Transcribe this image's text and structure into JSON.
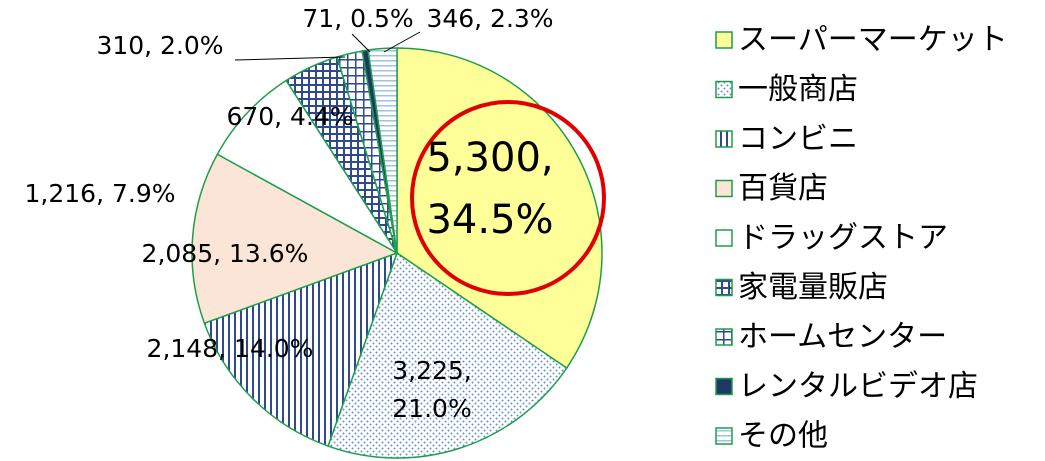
{
  "chart_data": {
    "type": "pie",
    "categories": [
      "スーパーマーケット",
      "一般商店",
      "コンビニ",
      "百貨店",
      "ドラッグストア",
      "家電量販店",
      "ホームセンター",
      "レンタルビデオ店",
      "その他"
    ],
    "values": [
      5300,
      3225,
      2148,
      2085,
      1216,
      670,
      310,
      71,
      346
    ],
    "value_labels": [
      "5,300,\n34.5%",
      "3,225,\n21.0%",
      "2,148, 14.0%",
      "2,085, 13.6%",
      "1,216, 7.9%",
      "670, 4.4%",
      "310, 2.0%",
      "71, 0.5%",
      "346, 2.3%"
    ],
    "colors": [
      "#ffff99",
      "#dde8f0",
      "#2e4a8c",
      "#fbe5d6",
      "#ffffff",
      "#2e4a8c",
      "#2e4a8c",
      "#1f3864",
      "#9dc3e6"
    ],
    "patterns": [
      "solid",
      "dots",
      "vertical",
      "solid",
      "solid",
      "grid",
      "cross",
      "solid",
      "horizontal"
    ],
    "legend": "right"
  }
}
